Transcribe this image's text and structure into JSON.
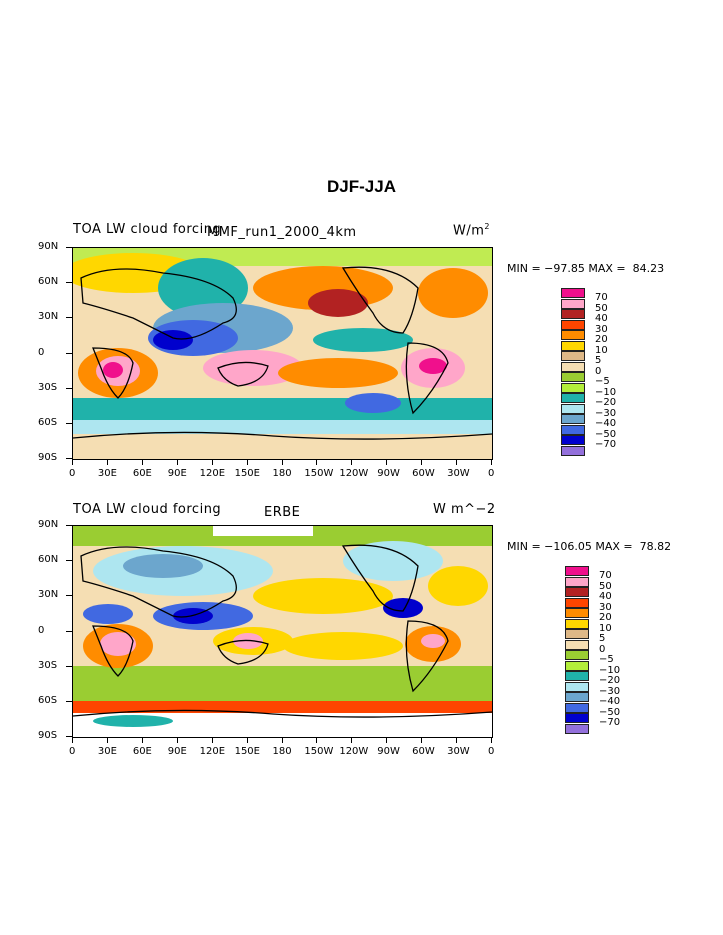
{
  "figure_title": "DJF-JJA",
  "palette": [
    "#f0108c",
    "#ffa6c9",
    "#b22222",
    "#ff4500",
    "#ff8c00",
    "#ffd700",
    "#deb887",
    "#f5deb3",
    "#9acd32",
    "#b3ee3a",
    "#20b2aa",
    "#aee6f0",
    "#6ca6cd",
    "#4169e1",
    "#0000cd",
    "#9370db"
  ],
  "colorbar_labels": [
    "70",
    "50",
    "40",
    "30",
    "20",
    "10",
    "5",
    "0",
    "−5",
    "−10",
    "−20",
    "−30",
    "−40",
    "−50",
    "−70"
  ],
  "lat_ticks": [
    "90N",
    "60N",
    "30N",
    "0",
    "30S",
    "60S",
    "90S"
  ],
  "lon_ticks": [
    "0",
    "30E",
    "60E",
    "90E",
    "120E",
    "150E",
    "180",
    "150W",
    "120W",
    "90W",
    "60W",
    "30W",
    "0"
  ],
  "panels": [
    {
      "left_title": "TOA LW cloud forcing",
      "center_title": "MMF_run1_2000_4km",
      "units_label": "W/m",
      "units_sup": "2",
      "minmax": "MIN = −97.85 MAX =  84.23"
    },
    {
      "left_title": "TOA LW cloud forcing",
      "center_title": "ERBE",
      "units_label": "W m^−2",
      "units_sup": "",
      "minmax": "MIN = −106.05 MAX =  78.82"
    }
  ]
}
